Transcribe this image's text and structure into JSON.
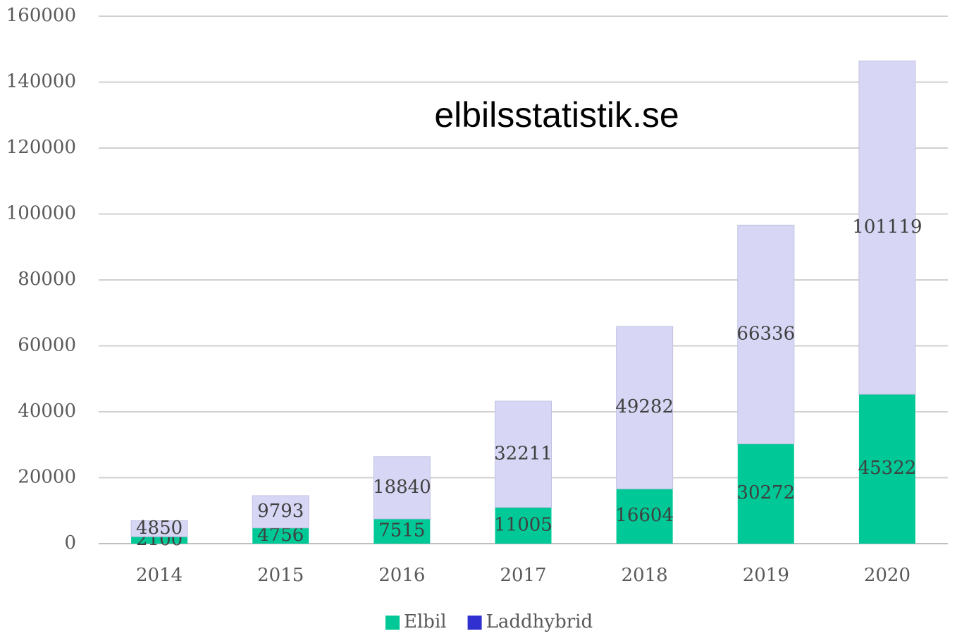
{
  "chart_data": {
    "type": "bar",
    "stacked": true,
    "annotation": "elbilsstatistik.se",
    "categories": [
      "2014",
      "2015",
      "2016",
      "2017",
      "2018",
      "2019",
      "2020"
    ],
    "series": [
      {
        "name": "Elbil",
        "color": "#00c896",
        "legend_color": "#00c896",
        "values": [
          2100,
          4756,
          7515,
          11005,
          16604,
          30272,
          45322
        ]
      },
      {
        "name": "Laddhybrid",
        "color": "#d7d7f5",
        "legend_color": "#3030d0",
        "values": [
          4850,
          9793,
          18840,
          32211,
          49282,
          66336,
          101119
        ]
      }
    ],
    "ylim": [
      0,
      160000
    ],
    "yticks": [
      0,
      20000,
      40000,
      60000,
      80000,
      100000,
      120000,
      140000,
      160000
    ],
    "grid": true,
    "legend": "bottom"
  }
}
